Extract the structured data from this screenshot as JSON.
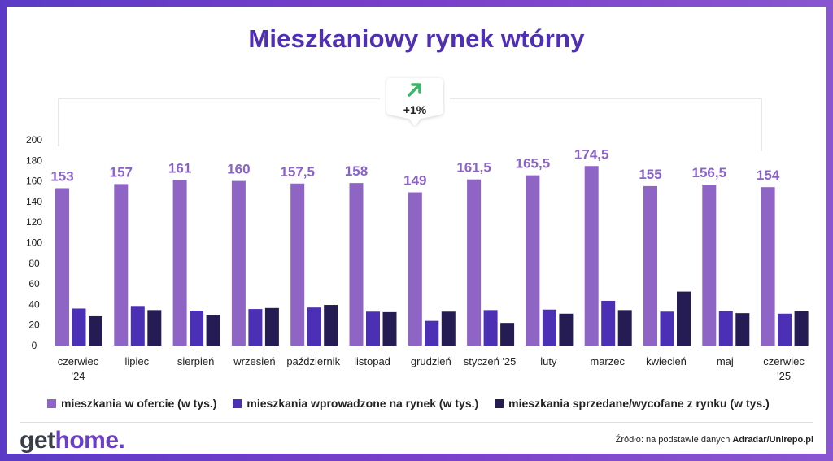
{
  "title": "Mieszkaniowy rynek wtórny",
  "badge": {
    "value": "+1%",
    "icon": "arrow-up-right-icon",
    "icon_color": "#3db56b"
  },
  "chart_data": {
    "type": "bar",
    "categories": [
      "czerwiec\n'24",
      "lipiec",
      "sierpień",
      "wrzesień",
      "październik",
      "listopad",
      "grudzień",
      "styczeń '25",
      "luty",
      "marzec",
      "kwiecień",
      "maj",
      "czerwiec\n'25"
    ],
    "series": [
      {
        "name": "mieszkania w ofercie (w tys.)",
        "color": "#8e65c5",
        "values": [
          153,
          157,
          161,
          160,
          157.5,
          158,
          149,
          161.5,
          165.5,
          174.5,
          155,
          156.5,
          154
        ],
        "labels": [
          "153",
          "157",
          "161",
          "160",
          "157,5",
          "158",
          "149",
          "161,5",
          "165,5",
          "174,5",
          "155",
          "156,5",
          "154"
        ]
      },
      {
        "name": "mieszkania wprowadzone na rynek (w tys.)",
        "color": "#4b2fb5",
        "values": [
          36,
          38.5,
          34,
          35.5,
          37,
          33,
          24,
          34.5,
          35,
          43.5,
          33,
          33.5,
          31
        ]
      },
      {
        "name": "mieszkania sprzedane/wycofane z rynku (w tys.)",
        "color": "#241c52",
        "values": [
          28.5,
          34.5,
          30,
          36.5,
          39.5,
          32.5,
          33,
          22,
          31,
          34.5,
          52.5,
          31.5,
          33.5
        ]
      }
    ],
    "yticks": [
      0,
      20,
      40,
      60,
      80,
      100,
      120,
      140,
      160,
      180,
      200
    ],
    "ylim": [
      0,
      200
    ],
    "grid": false,
    "legend_position": "bottom"
  },
  "logo": {
    "get": "get",
    "home": "home",
    "dot": "."
  },
  "source": {
    "prefix": "Źródło: na podstawie danych ",
    "bold": "Adradar/Unirepo.pl"
  }
}
